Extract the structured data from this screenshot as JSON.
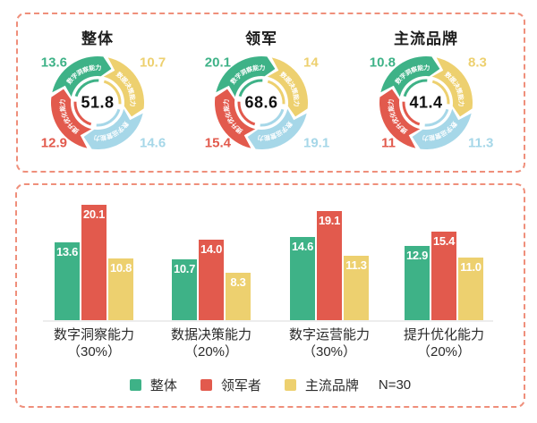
{
  "colors": {
    "green": "#3eb287",
    "red": "#e25a4d",
    "yellow": "#edd06f",
    "blue": "#a6d7e8",
    "panel_border": "#ef8f7b",
    "text_dark": "#1c1c1c",
    "baseline": "#ededed"
  },
  "capabilities": [
    "数字洞察能力",
    "数据决策能力",
    "数字运营能力",
    "提升优化能力"
  ],
  "chart_data": [
    {
      "type": "pie",
      "subtype": "cycle-donut",
      "title": "整体",
      "labels": [
        "数字洞察能力",
        "数据决策能力",
        "数字运营能力",
        "提升优化能力"
      ],
      "values": [
        13.6,
        10.7,
        14.6,
        12.9
      ],
      "segment_colors": [
        "green",
        "yellow",
        "blue",
        "red"
      ],
      "center_value": 51.8,
      "center_label": "51.8",
      "display_values": {
        "green": "13.6",
        "yellow": "10.7",
        "blue": "14.6",
        "red": "12.9"
      }
    },
    {
      "type": "pie",
      "subtype": "cycle-donut",
      "title": "领军",
      "labels": [
        "数字洞察能力",
        "数据决策能力",
        "数字运营能力",
        "提升优化能力"
      ],
      "values": [
        20.1,
        14,
        19.1,
        15.4
      ],
      "segment_colors": [
        "green",
        "yellow",
        "blue",
        "red"
      ],
      "center_value": 68.6,
      "center_label": "68.6",
      "display_values": {
        "green": "20.1",
        "yellow": "14",
        "blue": "19.1",
        "red": "15.4"
      }
    },
    {
      "type": "pie",
      "subtype": "cycle-donut",
      "title": "主流品牌",
      "labels": [
        "数字洞察能力",
        "数据决策能力",
        "数字运营能力",
        "提升优化能力"
      ],
      "values": [
        10.8,
        8.3,
        11.3,
        11
      ],
      "segment_colors": [
        "green",
        "yellow",
        "blue",
        "red"
      ],
      "center_value": 41.4,
      "center_label": "41.4",
      "display_values": {
        "green": "10.8",
        "yellow": "8.3",
        "blue": "11.3",
        "red": "11"
      }
    },
    {
      "type": "bar",
      "categories": [
        "数字洞察能力",
        "数据决策能力",
        "数字运营能力",
        "提升优化能力"
      ],
      "category_weights": [
        "（30%）",
        "（20%）",
        "（30%）",
        "（20%）"
      ],
      "series": [
        {
          "name": "整体",
          "color": "green",
          "values": [
            13.6,
            10.7,
            14.6,
            12.9
          ],
          "value_labels": [
            "13.6",
            "10.7",
            "14.6",
            "12.9"
          ]
        },
        {
          "name": "领军者",
          "color": "red",
          "values": [
            20.1,
            14.0,
            19.1,
            15.4
          ],
          "value_labels": [
            "20.1",
            "14.0",
            "19.1",
            "15.4"
          ]
        },
        {
          "name": "主流品牌",
          "color": "yellow",
          "values": [
            10.8,
            8.3,
            11.3,
            11.0
          ],
          "value_labels": [
            "10.8",
            "8.3",
            "11.3",
            "11.0"
          ]
        }
      ],
      "legend": [
        "整体",
        "领军者",
        "主流品牌"
      ],
      "note": "N=30",
      "ylim": [
        0,
        22
      ],
      "grid": false,
      "legend_position": "bottom"
    }
  ]
}
